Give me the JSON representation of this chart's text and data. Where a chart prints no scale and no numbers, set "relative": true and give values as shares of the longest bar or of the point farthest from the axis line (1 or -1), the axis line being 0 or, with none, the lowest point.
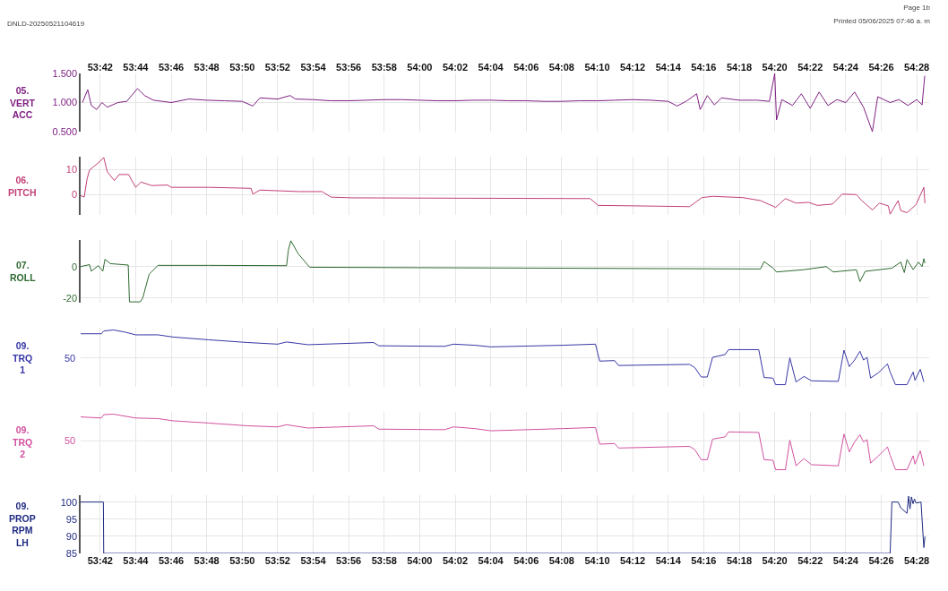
{
  "chart_data": [
    {
      "type": "line",
      "ylabel": "05.\nVERT\nACC",
      "annotations": [
        "DNLD-20250521104619",
        "Page 1b",
        "Printed 05/06/2025 07:46 a. m"
      ],
      "grid": true,
      "xlim": [
        3220.9,
        3268.7
      ],
      "xticks": [
        {
          "value": 3222,
          "label": "53:42"
        },
        {
          "value": 3224,
          "label": "53:44"
        },
        {
          "value": 3226,
          "label": "53:46"
        },
        {
          "value": 3228,
          "label": "53:48"
        },
        {
          "value": 3230,
          "label": "53:50"
        },
        {
          "value": 3232,
          "label": "53:52"
        },
        {
          "value": 3234,
          "label": "53:54"
        },
        {
          "value": 3236,
          "label": "53:56"
        },
        {
          "value": 3238,
          "label": "53:58"
        },
        {
          "value": 3240,
          "label": "54:00"
        },
        {
          "value": 3242,
          "label": "54:02"
        },
        {
          "value": 3244,
          "label": "54:04"
        },
        {
          "value": 3246,
          "label": "54:06"
        },
        {
          "value": 3248,
          "label": "54:08"
        },
        {
          "value": 3250,
          "label": "54:10"
        },
        {
          "value": 3252,
          "label": "54:12"
        },
        {
          "value": 3254,
          "label": "54:14"
        },
        {
          "value": 3256,
          "label": "54:16"
        },
        {
          "value": 3258,
          "label": "54:18"
        },
        {
          "value": 3260,
          "label": "54:20"
        },
        {
          "value": 3262,
          "label": "54:22"
        },
        {
          "value": 3264,
          "label": "54:24"
        },
        {
          "value": 3266,
          "label": "54:26"
        },
        {
          "value": 3268,
          "label": "54:28"
        }
      ],
      "ylim": [
        0.5,
        1.5
      ],
      "yticks": [
        {
          "value": 0.5,
          "label": "0.500"
        },
        {
          "value": 1,
          "label": "1.000"
        },
        {
          "value": 1.5,
          "label": "1.500"
        }
      ],
      "x": [
        3221.0,
        3221.3,
        3221.5,
        3221.8,
        3222.1,
        3222.4,
        3223.0,
        3223.5,
        3224.1,
        3224.5,
        3225.0,
        3225.5,
        3226.0,
        3227.0,
        3228.0,
        3229.0,
        3230.0,
        3230.6,
        3231.0,
        3232.0,
        3232.7,
        3233.0,
        3234.0,
        3235.0,
        3236.0,
        3237.0,
        3238.0,
        3239.0,
        3240.0,
        3241.0,
        3242.0,
        3243.0,
        3244.0,
        3245.0,
        3246.0,
        3247.0,
        3248.0,
        3249.0,
        3250.0,
        3251.0,
        3252.0,
        3253.0,
        3254.0,
        3254.5,
        3255.0,
        3255.6,
        3255.8,
        3256.2,
        3256.6,
        3257.0,
        3258.0,
        3259.0,
        3259.7,
        3260.0,
        3260.1,
        3260.4,
        3261.0,
        3261.5,
        3262.0,
        3262.5,
        3263.0,
        3263.5,
        3264.0,
        3264.5,
        3265.0,
        3265.5,
        3265.8,
        3266.5,
        3267.0,
        3267.5,
        3268.0,
        3268.3,
        3268.45
      ],
      "series": [
        {
          "color": "#7e1f80",
          "values": [
            1.0,
            1.22,
            0.95,
            0.88,
            1.0,
            0.92,
            1.0,
            1.02,
            1.24,
            1.12,
            1.04,
            1.02,
            1.0,
            1.06,
            1.04,
            1.03,
            1.02,
            0.94,
            1.08,
            1.06,
            1.12,
            1.06,
            1.05,
            1.03,
            1.03,
            1.04,
            1.05,
            1.05,
            1.04,
            1.03,
            1.03,
            1.04,
            1.04,
            1.03,
            1.03,
            1.02,
            1.02,
            1.03,
            1.03,
            1.04,
            1.05,
            1.04,
            1.02,
            0.94,
            1.02,
            1.15,
            0.88,
            1.12,
            0.96,
            1.08,
            1.04,
            1.04,
            1.02,
            1.5,
            0.7,
            1.05,
            0.95,
            1.15,
            0.9,
            1.18,
            0.95,
            1.05,
            1.0,
            1.18,
            0.92,
            0.5,
            1.1,
            1.0,
            1.05,
            0.95,
            1.05,
            0.96,
            1.46
          ]
        }
      ]
    },
    {
      "type": "line",
      "ylabel": "06.\nPITCH",
      "grid": true,
      "tick_labels": "y",
      "xlim": [
        3220.9,
        3268.7
      ],
      "xticks": [
        3222,
        3224,
        3226,
        3228,
        3230,
        3232,
        3234,
        3236,
        3238,
        3240,
        3242,
        3244,
        3246,
        3248,
        3250,
        3252,
        3254,
        3256,
        3258,
        3260,
        3262,
        3264,
        3266,
        3268
      ],
      "ylim": [
        -8.1,
        15.1
      ],
      "yticks": [
        0,
        10
      ],
      "x": [
        3220.9,
        3221.1,
        3221.26,
        3221.4,
        3221.7,
        3222.0,
        3222.2,
        3222.4,
        3222.8,
        3223.07,
        3223.6,
        3224.0,
        3224.3,
        3224.9,
        3225.8,
        3226.0,
        3228.1,
        3230.5,
        3230.6,
        3231.0,
        3233.2,
        3234.5,
        3235.0,
        3236.2,
        3249.6,
        3250.05,
        3255.2,
        3255.9,
        3256.5,
        3258.2,
        3259.2,
        3260.05,
        3260.6,
        3261.2,
        3261.9,
        3262.4,
        3263.25,
        3263.8,
        3264.6,
        3264.9,
        3265.5,
        3265.9,
        3266.4,
        3266.5,
        3266.95,
        3267.1,
        3267.45,
        3267.96,
        3268.4,
        3268.46
      ],
      "series": [
        {
          "color": "#c23f78",
          "values": [
            -0.4,
            -1,
            6.2,
            9.8,
            11.5,
            13.3,
            14.8,
            9.1,
            5.6,
            8.0,
            8.0,
            2.9,
            5.0,
            3.6,
            3.8,
            2.9,
            2.9,
            2.5,
            0.2,
            1.8,
            1.2,
            1.2,
            -1.0,
            -1.3,
            -1.6,
            -4.3,
            -4.8,
            -1.2,
            -0.7,
            -1.2,
            -2.4,
            -5.1,
            -1.6,
            -3.4,
            -3.1,
            -4.3,
            -3.8,
            0.2,
            0,
            -2.4,
            -6.1,
            -3.4,
            -4.5,
            -7.8,
            -2.4,
            -6.4,
            -7.2,
            -4.0,
            2.9,
            -3.4
          ]
        }
      ]
    },
    {
      "type": "line",
      "ylabel": "07.\nROLL",
      "grid": true,
      "tick_labels": "y",
      "xlim": [
        3220.9,
        3268.7
      ],
      "xticks": [
        3222,
        3224,
        3226,
        3228,
        3230,
        3232,
        3234,
        3236,
        3238,
        3240,
        3242,
        3244,
        3246,
        3248,
        3250,
        3252,
        3254,
        3256,
        3258,
        3260,
        3262,
        3264,
        3266,
        3268
      ],
      "ylim": [
        -23,
        17
      ],
      "yticks": [
        -20,
        0
      ],
      "x": [
        3220.9,
        3221.4,
        3221.5,
        3221.9,
        3222.15,
        3222.27,
        3222.57,
        3223.58,
        3223.65,
        3224.25,
        3224.4,
        3224.76,
        3225.26,
        3228.1,
        3232.5,
        3232.6,
        3232.74,
        3233.16,
        3233.8,
        3259.2,
        3259.4,
        3259.9,
        3260.1,
        3261.6,
        3262.9,
        3263.3,
        3264.6,
        3264.8,
        3265.1,
        3266.6,
        3267.1,
        3267.3,
        3267.45,
        3267.8,
        3268.1,
        3268.3,
        3268.4,
        3268.46
      ],
      "series": [
        {
          "color": "#2f6a30",
          "values": [
            0,
            1.3,
            -2.9,
            0.6,
            -2.9,
            4.7,
            1.9,
            1.0,
            -22.5,
            -22.5,
            -20,
            -4.8,
            0.8,
            0.8,
            0.6,
            10.5,
            16.5,
            8.2,
            -0.4,
            -1.5,
            3.2,
            -0.9,
            -3.4,
            -2.0,
            0,
            -3.4,
            -2.0,
            -9.5,
            -3.0,
            -1.0,
            2.9,
            -3.8,
            4.5,
            -1.9,
            2.9,
            0,
            5.1,
            2.2
          ]
        }
      ]
    },
    {
      "type": "line",
      "ylabel": "09.\nTRQ\n1",
      "relative": true,
      "grid": true,
      "tick_labels": false,
      "xlim": [
        3220.9,
        3268.7
      ],
      "xticks": [
        3222,
        3224,
        3226,
        3228,
        3230,
        3232,
        3234,
        3236,
        3238,
        3240,
        3242,
        3244,
        3246,
        3248,
        3250,
        3252,
        3254,
        3256,
        3258,
        3260,
        3262,
        3264,
        3266,
        3268
      ],
      "ref_lines": [
        {
          "axis": "y",
          "value": 0.49,
          "color": "#e6e6e6"
        }
      ],
      "annotations": [
        "50"
      ],
      "x": [
        3220.9,
        3222.07,
        3222.2,
        3222.74,
        3223.4,
        3224.0,
        3225.26,
        3226.1,
        3228.1,
        3230.3,
        3232.0,
        3232.5,
        3233.7,
        3237.4,
        3237.7,
        3241.4,
        3241.9,
        3243.1,
        3244.0,
        3248.1,
        3249.9,
        3250.14,
        3250.98,
        3251.2,
        3255.2,
        3255.5,
        3255.86,
        3256.2,
        3256.5,
        3257.2,
        3257.4,
        3259.1,
        3259.4,
        3259.9,
        3260.05,
        3260.6,
        3260.85,
        3261.2,
        3261.65,
        3262.07,
        3263.58,
        3263.9,
        3264.2,
        3264.5,
        3264.8,
        3265.0,
        3265.2,
        3265.4,
        3265.85,
        3266.35,
        3266.5,
        3266.8,
        3267.45,
        3267.8,
        3267.9,
        3268.2,
        3268.4
      ],
      "series": [
        {
          "color": "#3636a6",
          "values": [
            0.93,
            0.93,
            0.98,
            1.0,
            0.96,
            0.91,
            0.91,
            0.87,
            0.82,
            0.77,
            0.74,
            0.78,
            0.73,
            0.77,
            0.71,
            0.7,
            0.74,
            0.72,
            0.69,
            0.72,
            0.74,
            0.43,
            0.44,
            0.35,
            0.37,
            0.31,
            0.14,
            0.14,
            0.5,
            0.55,
            0.64,
            0.64,
            0.13,
            0.12,
            0,
            0,
            0.49,
            0.05,
            0.15,
            0.07,
            0.06,
            0.63,
            0.33,
            0.45,
            0.61,
            0.45,
            0.5,
            0.12,
            0.22,
            0.38,
            0.23,
            0,
            0,
            0.23,
            0.08,
            0.28,
            0.05
          ]
        }
      ]
    },
    {
      "type": "line",
      "ylabel": "09.\nTRQ\n2",
      "relative": true,
      "grid": true,
      "tick_labels": false,
      "xlim": [
        3220.9,
        3268.7
      ],
      "xticks": [
        3222,
        3224,
        3226,
        3228,
        3230,
        3232,
        3234,
        3236,
        3238,
        3240,
        3242,
        3244,
        3246,
        3248,
        3250,
        3252,
        3254,
        3256,
        3258,
        3260,
        3262,
        3264,
        3266,
        3268
      ],
      "ref_lines": [
        {
          "axis": "y",
          "value": 0.52,
          "color": "#e6e6e6"
        }
      ],
      "annotations": [
        "50"
      ],
      "x": [
        3220.9,
        3222.07,
        3222.2,
        3222.74,
        3224.0,
        3225.26,
        3226.1,
        3228.1,
        3230.3,
        3232.0,
        3232.5,
        3233.7,
        3237.4,
        3237.7,
        3241.4,
        3241.9,
        3243.1,
        3244.0,
        3248.1,
        3249.9,
        3250.14,
        3250.98,
        3251.2,
        3255.2,
        3255.5,
        3255.86,
        3256.2,
        3256.5,
        3257.2,
        3257.4,
        3259.1,
        3259.4,
        3259.9,
        3260.05,
        3260.6,
        3260.85,
        3261.2,
        3261.65,
        3262.07,
        3263.58,
        3263.9,
        3264.2,
        3264.5,
        3264.8,
        3265.0,
        3265.2,
        3265.4,
        3265.85,
        3266.35,
        3266.5,
        3266.8,
        3267.45,
        3267.8,
        3267.9,
        3268.2,
        3268.4
      ],
      "series": [
        {
          "color": "#d2509f",
          "values": [
            0.95,
            0.93,
            0.99,
            1.0,
            0.93,
            0.92,
            0.88,
            0.84,
            0.79,
            0.77,
            0.81,
            0.75,
            0.79,
            0.73,
            0.72,
            0.77,
            0.74,
            0.7,
            0.74,
            0.76,
            0.46,
            0.47,
            0.39,
            0.42,
            0.36,
            0.18,
            0.18,
            0.55,
            0.59,
            0.68,
            0.67,
            0.18,
            0.17,
            0,
            0,
            0.53,
            0.07,
            0.2,
            0.09,
            0.07,
            0.64,
            0.32,
            0.5,
            0.63,
            0.5,
            0.54,
            0.12,
            0.25,
            0.41,
            0.26,
            0,
            0,
            0.25,
            0.1,
            0.34,
            0.07
          ]
        }
      ]
    },
    {
      "type": "line",
      "ylabel": "09.\nPROP\nRPM\nLH",
      "grid": true,
      "xlim": [
        3220.9,
        3268.7
      ],
      "xticks": [
        {
          "value": 3222,
          "label": "53:42"
        },
        {
          "value": 3224,
          "label": "53:44"
        },
        {
          "value": 3226,
          "label": "53:46"
        },
        {
          "value": 3228,
          "label": "53:48"
        },
        {
          "value": 3230,
          "label": "53:50"
        },
        {
          "value": 3232,
          "label": "53:52"
        },
        {
          "value": 3234,
          "label": "53:54"
        },
        {
          "value": 3236,
          "label": "53:56"
        },
        {
          "value": 3238,
          "label": "53:58"
        },
        {
          "value": 3240,
          "label": "54:00"
        },
        {
          "value": 3242,
          "label": "54:02"
        },
        {
          "value": 3244,
          "label": "54:04"
        },
        {
          "value": 3246,
          "label": "54:06"
        },
        {
          "value": 3248,
          "label": "54:08"
        },
        {
          "value": 3250,
          "label": "54:10"
        },
        {
          "value": 3252,
          "label": "54:12"
        },
        {
          "value": 3254,
          "label": "54:14"
        },
        {
          "value": 3256,
          "label": "54:16"
        },
        {
          "value": 3258,
          "label": "54:18"
        },
        {
          "value": 3260,
          "label": "54:20"
        },
        {
          "value": 3262,
          "label": "54:22"
        },
        {
          "value": 3264,
          "label": "54:24"
        },
        {
          "value": 3266,
          "label": "54:26"
        },
        {
          "value": 3268,
          "label": "54:28"
        }
      ],
      "ylim": [
        85,
        102
      ],
      "yticks": [
        85,
        90,
        95,
        100
      ],
      "x": [
        3220.9,
        3222.18,
        3222.2,
        3266.5,
        3266.6,
        3266.95,
        3267.1,
        3267.45,
        3267.54,
        3267.62,
        3267.7,
        3267.79,
        3267.87,
        3267.96,
        3268.24,
        3268.34,
        3268.4,
        3268.46
      ],
      "series": [
        {
          "color": "#1f2a82",
          "values": [
            100,
            100,
            85,
            85,
            100,
            100,
            98.3,
            96.7,
            101.7,
            98,
            101.5,
            99.5,
            100.9,
            99.7,
            100,
            91.5,
            86.7,
            89.9
          ]
        }
      ]
    }
  ]
}
